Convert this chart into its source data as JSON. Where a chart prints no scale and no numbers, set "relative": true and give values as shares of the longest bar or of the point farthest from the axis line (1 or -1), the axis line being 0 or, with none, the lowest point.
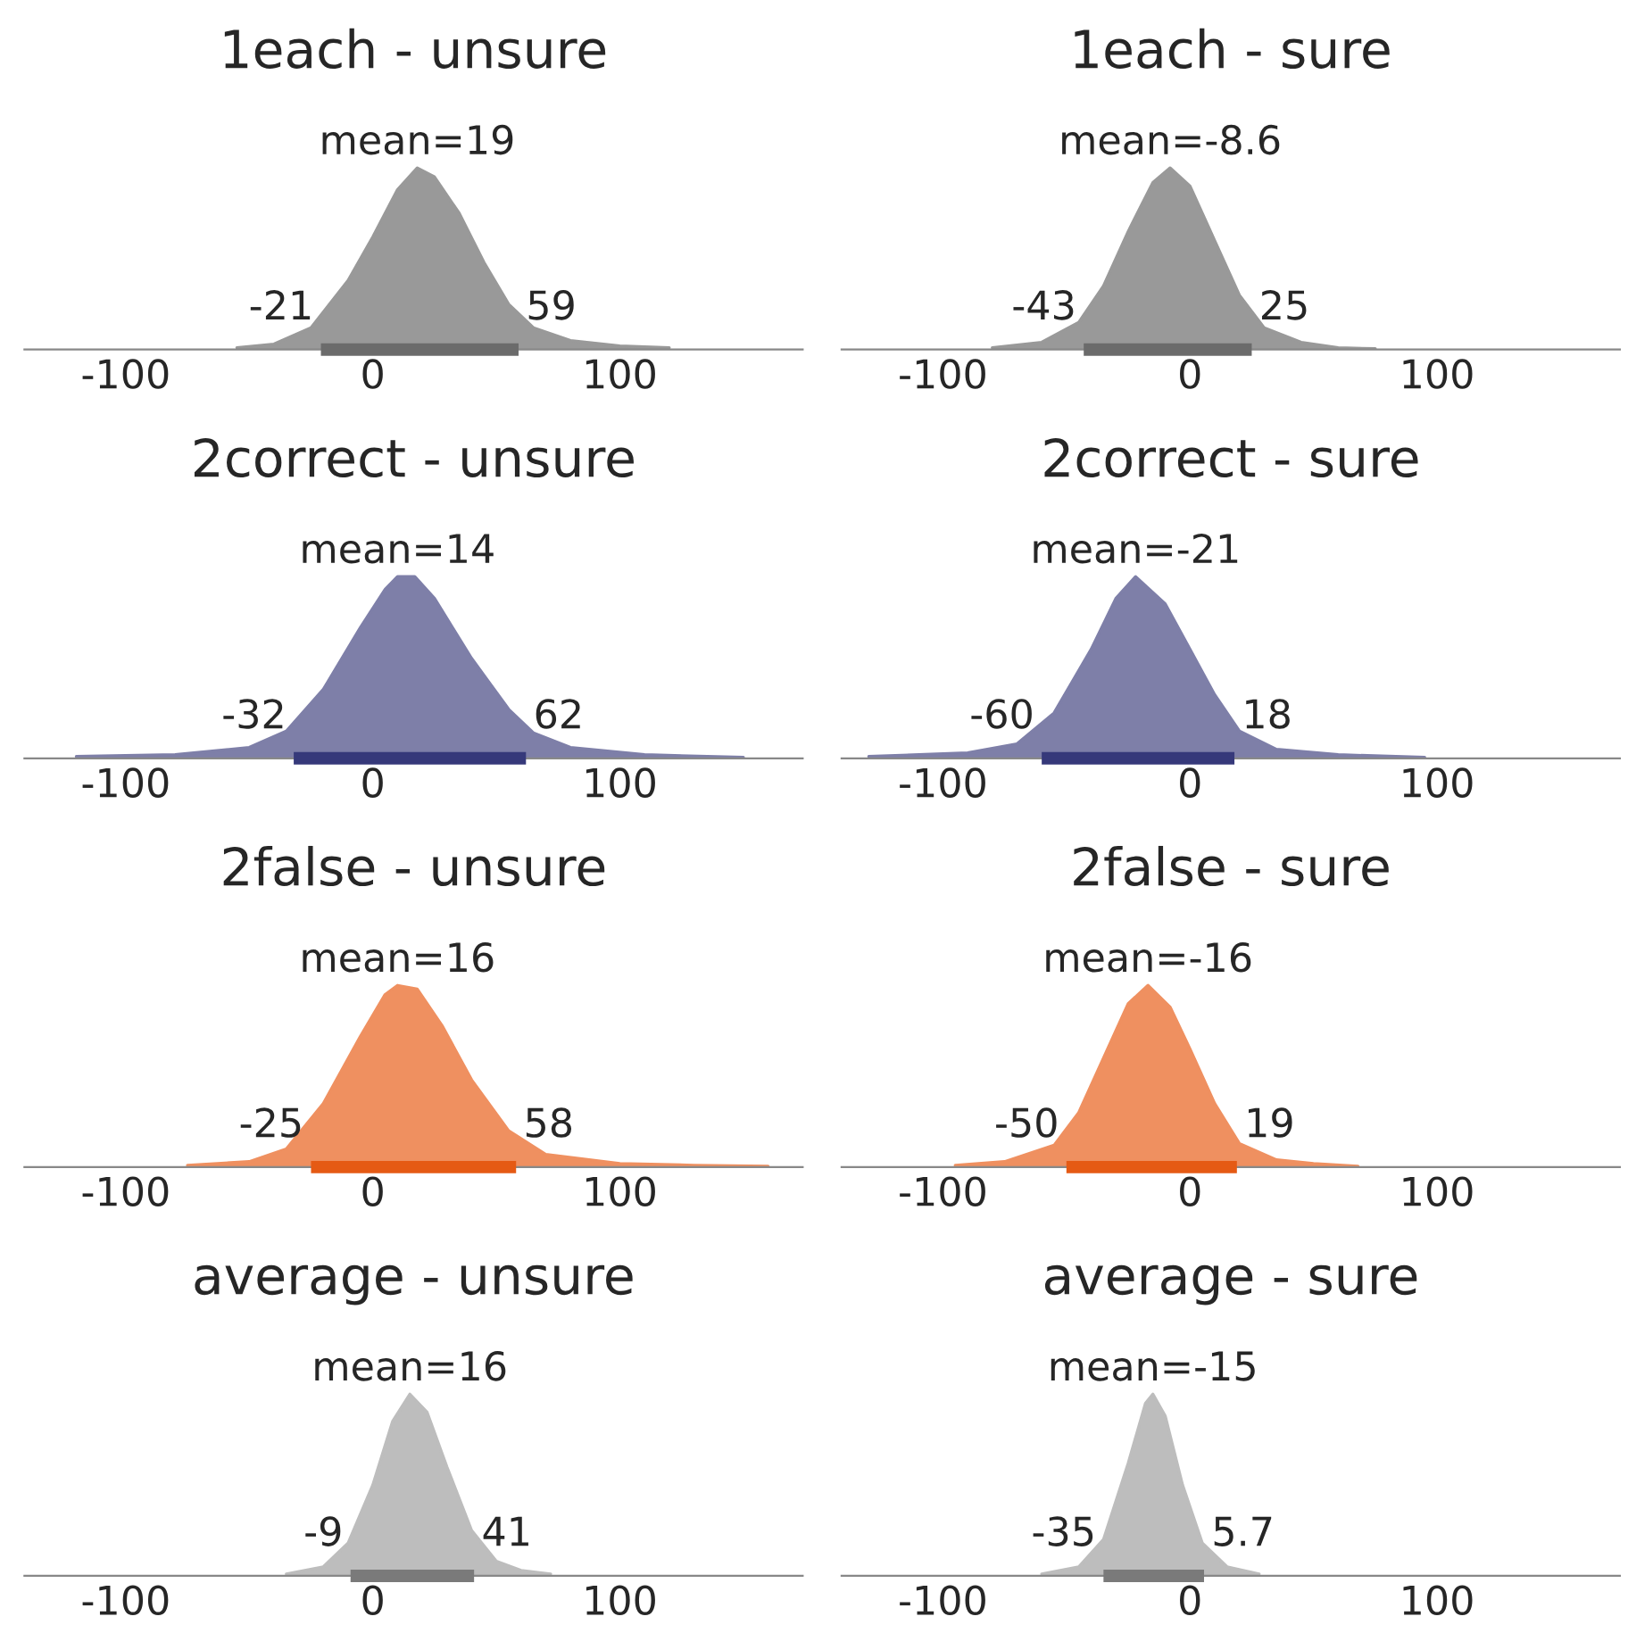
{
  "chart_data": [
    {
      "type": "area",
      "title": "1each - unsure",
      "relative": true,
      "xlim": [
        -141,
        174
      ],
      "xticks": [
        -100,
        0,
        100
      ],
      "tick_labels": "x",
      "series": [
        {
          "color": "#999999",
          "x": [
            -55,
            -40,
            -25,
            -10,
            0,
            10,
            18,
            25,
            35,
            45,
            55,
            65,
            80,
            100,
            120
          ],
          "values": [
            0.01,
            0.03,
            0.12,
            0.38,
            0.62,
            0.88,
            1.0,
            0.95,
            0.75,
            0.48,
            0.25,
            0.12,
            0.05,
            0.02,
            0.01
          ]
        },
        {
          "type": "line",
          "color": "#6b6b6b",
          "x": [
            -21,
            59
          ],
          "values": [
            0,
            0
          ]
        }
      ],
      "annotations": [
        "mean=19",
        "-21",
        "59"
      ]
    },
    {
      "type": "area",
      "title": "1each - sure",
      "relative": true,
      "xlim": [
        -141,
        174
      ],
      "xticks": [
        -100,
        0,
        100
      ],
      "tick_labels": "x",
      "series": [
        {
          "color": "#999999",
          "x": [
            -80,
            -60,
            -45,
            -35,
            -25,
            -15,
            -8,
            0,
            10,
            20,
            30,
            45,
            60,
            75
          ],
          "values": [
            0.01,
            0.04,
            0.15,
            0.35,
            0.65,
            0.92,
            1.0,
            0.9,
            0.6,
            0.3,
            0.12,
            0.04,
            0.01,
            0.005
          ]
        },
        {
          "type": "line",
          "color": "#6b6b6b",
          "x": [
            -43,
            25
          ],
          "values": [
            0,
            0
          ]
        }
      ],
      "annotations": [
        "mean=-8.6",
        "-43",
        "25"
      ]
    },
    {
      "type": "area",
      "title": "2correct - unsure",
      "relative": true,
      "xlim": [
        -141,
        174
      ],
      "xticks": [
        -100,
        0,
        100
      ],
      "tick_labels": "x",
      "series": [
        {
          "color": "#7e7fa8",
          "x": [
            -120,
            -80,
            -50,
            -35,
            -20,
            -5,
            5,
            10,
            17,
            25,
            40,
            55,
            65,
            80,
            110,
            150
          ],
          "values": [
            0.01,
            0.02,
            0.06,
            0.15,
            0.38,
            0.72,
            0.93,
            1.0,
            1.0,
            0.88,
            0.55,
            0.27,
            0.14,
            0.06,
            0.02,
            0.005
          ]
        },
        {
          "type": "line",
          "color": "#36397a",
          "x": [
            -32,
            62
          ],
          "values": [
            0,
            0
          ]
        }
      ],
      "annotations": [
        "mean=14",
        "-32",
        "62"
      ]
    },
    {
      "type": "area",
      "title": "2correct - sure",
      "relative": true,
      "xlim": [
        -141,
        174
      ],
      "xticks": [
        -100,
        0,
        100
      ],
      "tick_labels": "x",
      "series": [
        {
          "color": "#7e7fa8",
          "x": [
            -130,
            -90,
            -70,
            -55,
            -40,
            -30,
            -22,
            -10,
            0,
            10,
            20,
            35,
            60,
            95
          ],
          "values": [
            0.01,
            0.03,
            0.08,
            0.25,
            0.6,
            0.88,
            1.0,
            0.85,
            0.6,
            0.35,
            0.15,
            0.05,
            0.02,
            0.005
          ]
        },
        {
          "type": "line",
          "color": "#36397a",
          "x": [
            -60,
            18
          ],
          "values": [
            0,
            0
          ]
        }
      ],
      "annotations": [
        "mean=-21",
        "-60",
        "18"
      ]
    },
    {
      "type": "area",
      "title": "2false - unsure",
      "relative": true,
      "xlim": [
        -141,
        174
      ],
      "xticks": [
        -100,
        0,
        100
      ],
      "tick_labels": "x",
      "series": [
        {
          "color": "#ef9060",
          "x": [
            -75,
            -50,
            -35,
            -20,
            -5,
            5,
            10,
            18,
            28,
            40,
            55,
            70,
            100,
            130,
            160
          ],
          "values": [
            0.01,
            0.03,
            0.1,
            0.35,
            0.72,
            0.95,
            1.0,
            0.98,
            0.78,
            0.48,
            0.2,
            0.07,
            0.02,
            0.01,
            0.005
          ]
        },
        {
          "type": "line",
          "color": "#e55a14",
          "x": [
            -25,
            58
          ],
          "values": [
            0,
            0
          ]
        }
      ],
      "annotations": [
        "mean=16",
        "-25",
        "58"
      ]
    },
    {
      "type": "area",
      "title": "2false - sure",
      "relative": true,
      "xlim": [
        -141,
        174
      ],
      "xticks": [
        -100,
        0,
        100
      ],
      "tick_labels": "x",
      "series": [
        {
          "color": "#ef9060",
          "x": [
            -95,
            -75,
            -55,
            -45,
            -35,
            -25,
            -17,
            -8,
            0,
            10,
            20,
            35,
            50,
            68
          ],
          "values": [
            0.01,
            0.03,
            0.12,
            0.3,
            0.6,
            0.9,
            1.0,
            0.88,
            0.65,
            0.35,
            0.13,
            0.04,
            0.02,
            0.005
          ]
        },
        {
          "type": "line",
          "color": "#e55a14",
          "x": [
            -50,
            19
          ],
          "values": [
            0,
            0
          ]
        }
      ],
      "annotations": [
        "mean=-16",
        "-50",
        "19"
      ]
    },
    {
      "type": "area",
      "title": "average - unsure",
      "relative": true,
      "xlim": [
        -141,
        174
      ],
      "xticks": [
        -100,
        0,
        100
      ],
      "tick_labels": "x",
      "series": [
        {
          "color": "#bdbdbd",
          "x": [
            -35,
            -20,
            -10,
            0,
            8,
            15,
            22,
            30,
            40,
            50,
            60,
            72
          ],
          "values": [
            0.01,
            0.05,
            0.18,
            0.5,
            0.85,
            1.0,
            0.9,
            0.6,
            0.25,
            0.08,
            0.03,
            0.01
          ]
        },
        {
          "type": "line",
          "color": "#7a7a7a",
          "x": [
            -9,
            41
          ],
          "values": [
            0,
            0
          ]
        }
      ],
      "annotations": [
        "mean=16",
        "-9",
        "41"
      ]
    },
    {
      "type": "area",
      "title": "average - sure",
      "relative": true,
      "xlim": [
        -141,
        174
      ],
      "xticks": [
        -100,
        0,
        100
      ],
      "tick_labels": "x",
      "series": [
        {
          "color": "#bdbdbd",
          "x": [
            -60,
            -45,
            -35,
            -25,
            -18,
            -15,
            -10,
            -3,
            5,
            15,
            28
          ],
          "values": [
            0.01,
            0.05,
            0.2,
            0.62,
            0.95,
            1.0,
            0.88,
            0.5,
            0.18,
            0.05,
            0.01
          ]
        },
        {
          "type": "line",
          "color": "#7a7a7a",
          "x": [
            -35,
            5.7
          ],
          "values": [
            0,
            0
          ]
        }
      ],
      "annotations": [
        "mean=-15",
        "-35",
        "5.7"
      ]
    }
  ]
}
